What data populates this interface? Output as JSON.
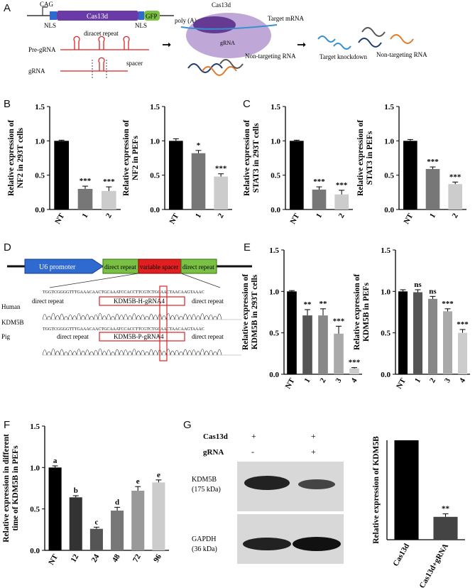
{
  "panel_letters": [
    "A",
    "B",
    "C",
    "D",
    "E",
    "F",
    "G"
  ],
  "schematic": {
    "cag": "CAG",
    "cas13d": "Cas13d",
    "gfp": "GFP",
    "polyA": "poly (A)",
    "nls1": "NLS",
    "nls2": "NLS",
    "direct_repeat": "diracet repeat",
    "pre_grna": "Pre-gRNA",
    "grna": "gRNA",
    "spacer": "spacer",
    "complex_label": "Cas13d",
    "target_mrna": "Target\nmRNA",
    "complex_grna": "gRNA",
    "nontargeting_rna": "Non-targeting\nRNA",
    "target_knockdown": "Target knockdown",
    "nontargeting_rna2": "Non-targeting\nRNA"
  },
  "construct": {
    "u6": "U6 promoter",
    "dr1": "direct repeat",
    "spacer": "variable spacer",
    "dr2": "direct repeat",
    "seq1": "TGGTCGGGGTTTGAAACAACTGCAAATCCACCTTCGTCTGCAACTAACAAGTAAAC",
    "seq2": "TGGTCGGGGTTTGAAACAACTGCAAATCCACCTTCGTCTGCAACTAACAAGTAAAC",
    "human": "Human",
    "pig": "Pig",
    "kdm5b": "KDM5B",
    "human_dr1": "direct repeat",
    "human_grna": "KDM5B-H-gRNA4",
    "human_dr2": "direct repeat",
    "pig_dr1": "direct repeat",
    "pig_grna": "KDM5B-P-gRNA4",
    "pig_dr2": "direct repeat"
  },
  "western": {
    "cas13d_label": "Cas13d",
    "grna_label": "gRNA",
    "lane1_cas": "+",
    "lane2_cas": "+",
    "lane1_grna": "-",
    "lane2_grna": "+",
    "kdm5b": "KDM5B",
    "kdm5b_kda": "(175 kDa)",
    "gapdh": "GAPDH",
    "gapdh_kda": "(36 kDa)"
  },
  "chart_data": [
    {
      "id": "B1",
      "type": "bar",
      "ylabel": "Relative expression of\nNF2 in 293T cells",
      "categories": [
        "NT",
        "1",
        "2"
      ],
      "values": [
        1.0,
        0.3,
        0.27
      ],
      "errors": [
        0.01,
        0.04,
        0.06
      ],
      "sig": [
        "",
        "***",
        "***"
      ],
      "colors": [
        "#000000",
        "#777777",
        "#cccccc"
      ],
      "ylim": [
        0,
        1.5
      ],
      "yticks": [
        "0.0",
        "0.5",
        "1.0",
        "1.5"
      ]
    },
    {
      "id": "B2",
      "type": "bar",
      "ylabel": "Relative expression of\nNF2 in PEFs",
      "categories": [
        "NT",
        "1",
        "2"
      ],
      "values": [
        1.0,
        0.82,
        0.48
      ],
      "errors": [
        0.03,
        0.04,
        0.04
      ],
      "sig": [
        "",
        "*",
        "***"
      ],
      "colors": [
        "#000000",
        "#777777",
        "#cccccc"
      ],
      "ylim": [
        0,
        1.5
      ],
      "yticks": [
        "0.0",
        "0.5",
        "1.0",
        "1.5"
      ]
    },
    {
      "id": "C1",
      "type": "bar",
      "ylabel": "Relative expression of\nSTAT3 in 293T cells",
      "categories": [
        "NT",
        "1",
        "2"
      ],
      "values": [
        1.0,
        0.29,
        0.22
      ],
      "errors": [
        0.01,
        0.04,
        0.06
      ],
      "sig": [
        "",
        "***",
        "***"
      ],
      "colors": [
        "#000000",
        "#777777",
        "#cccccc"
      ],
      "ylim": [
        0,
        1.5
      ],
      "yticks": [
        "0.0",
        "0.5",
        "1.0",
        "1.5"
      ]
    },
    {
      "id": "C2",
      "type": "bar",
      "ylabel": "Relative expression of\nSTAT3 in PEFs",
      "categories": [
        "NT",
        "1",
        "2"
      ],
      "values": [
        1.0,
        0.59,
        0.37
      ],
      "errors": [
        0.02,
        0.03,
        0.03
      ],
      "sig": [
        "",
        "***",
        "***"
      ],
      "colors": [
        "#000000",
        "#777777",
        "#cccccc"
      ],
      "ylim": [
        0,
        1.5
      ],
      "yticks": [
        "0.0",
        "0.5",
        "1.0",
        "1.5"
      ]
    },
    {
      "id": "E1",
      "type": "bar",
      "ylabel": "Relative expression of\nKDM5B in 293T cells",
      "categories": [
        "NT",
        "1",
        "2",
        "3",
        "4"
      ],
      "values": [
        1.0,
        0.71,
        0.71,
        0.49,
        0.07
      ],
      "errors": [
        0.01,
        0.07,
        0.08,
        0.09,
        0.01
      ],
      "sig": [
        "",
        "**",
        "**",
        "***",
        "***"
      ],
      "colors": [
        "#000000",
        "#555555",
        "#888888",
        "#aaaaaa",
        "#cccccc"
      ],
      "ylim": [
        0,
        1.5
      ],
      "yticks": [
        "0.0",
        "0.5",
        "1.0",
        "1.5"
      ]
    },
    {
      "id": "E2",
      "type": "bar",
      "ylabel": "Relative expression of\nKDM5B in PEFs",
      "categories": [
        "NT",
        "1",
        "2",
        "3",
        "4"
      ],
      "values": [
        1.0,
        0.99,
        0.91,
        0.76,
        0.5
      ],
      "errors": [
        0.02,
        0.03,
        0.03,
        0.03,
        0.04
      ],
      "sig": [
        "",
        "ns",
        "ns",
        "***",
        "***"
      ],
      "colors": [
        "#000000",
        "#555555",
        "#888888",
        "#aaaaaa",
        "#cccccc"
      ],
      "ylim": [
        0,
        1.5
      ],
      "yticks": [
        "0.0",
        "0.5",
        "1.0",
        "1.5"
      ]
    },
    {
      "id": "F",
      "type": "bar",
      "ylabel": "Relative expression in different\ntime of KDM5B in PEFs",
      "categories": [
        "NT",
        "12",
        "24",
        "48",
        "72",
        "96"
      ],
      "values": [
        1.0,
        0.64,
        0.26,
        0.48,
        0.72,
        0.82
      ],
      "errors": [
        0.02,
        0.02,
        0.02,
        0.04,
        0.05,
        0.03
      ],
      "sig": [
        "a",
        "b",
        "c",
        "d",
        "e",
        "e"
      ],
      "colors": [
        "#000000",
        "#333333",
        "#555555",
        "#777777",
        "#999999",
        "#cccccc"
      ],
      "ylim": [
        0,
        1.5
      ],
      "yticks": [
        "0.0",
        "0.5",
        "1.0",
        "1.5"
      ]
    },
    {
      "id": "G",
      "type": "bar",
      "ylabel": "Relative expression of KDM5B",
      "categories": [
        "Cas13d",
        "Cas13d+gRNA"
      ],
      "values": [
        1.0,
        0.23
      ],
      "errors": [
        0,
        0.03
      ],
      "sig": [
        "",
        "**"
      ],
      "colors": [
        "#000000",
        "#444444"
      ],
      "ylim": [
        0,
        1.0
      ],
      "yticks": []
    }
  ]
}
